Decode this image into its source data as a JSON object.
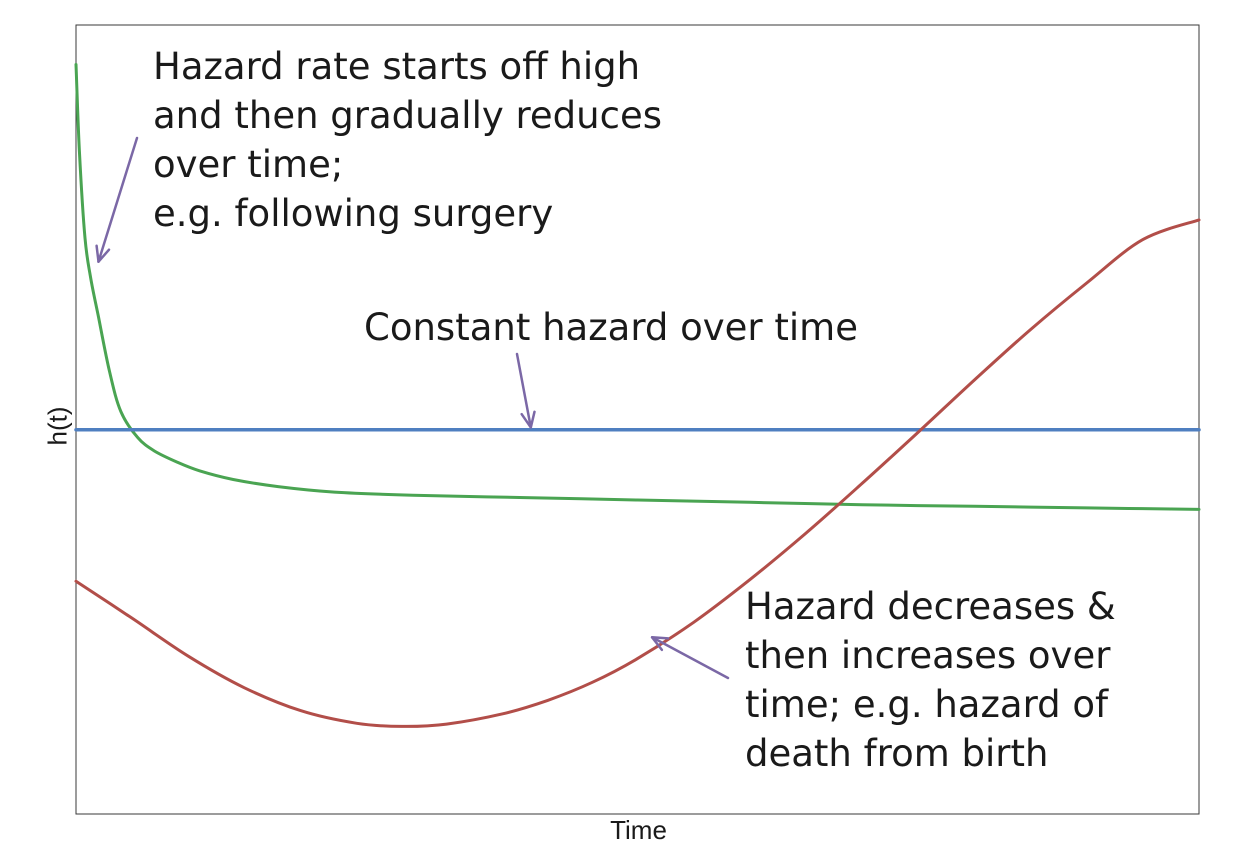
{
  "chart_data": {
    "type": "line",
    "title": "",
    "xlabel": "Time",
    "ylabel": "h(t)",
    "xlim": [
      0,
      1
    ],
    "ylim": [
      0,
      1
    ],
    "grid": false,
    "series": [
      {
        "key": "decreasing",
        "color": "#4aa452",
        "points": [
          [
            0.0,
            0.95
          ],
          [
            0.003,
            0.84
          ],
          [
            0.008,
            0.73
          ],
          [
            0.013,
            0.68
          ],
          [
            0.02,
            0.63
          ],
          [
            0.03,
            0.56
          ],
          [
            0.04,
            0.51
          ],
          [
            0.055,
            0.477
          ],
          [
            0.07,
            0.46
          ],
          [
            0.09,
            0.446
          ],
          [
            0.11,
            0.435
          ],
          [
            0.14,
            0.424
          ],
          [
            0.18,
            0.415
          ],
          [
            0.23,
            0.408
          ],
          [
            0.3,
            0.404
          ],
          [
            0.4,
            0.401
          ],
          [
            0.5,
            0.398
          ],
          [
            0.6,
            0.395
          ],
          [
            0.7,
            0.392
          ],
          [
            0.8,
            0.39
          ],
          [
            0.9,
            0.388
          ],
          [
            1.0,
            0.386
          ]
        ]
      },
      {
        "key": "constant",
        "color": "#4f7fc0",
        "points": [
          [
            0,
            0.487
          ],
          [
            1,
            0.487
          ]
        ]
      },
      {
        "key": "bathtub",
        "color": "#b24e49",
        "points": [
          [
            0.0,
            0.295
          ],
          [
            0.05,
            0.248
          ],
          [
            0.1,
            0.2
          ],
          [
            0.15,
            0.16
          ],
          [
            0.2,
            0.131
          ],
          [
            0.25,
            0.115
          ],
          [
            0.29,
            0.111
          ],
          [
            0.33,
            0.114
          ],
          [
            0.38,
            0.127
          ],
          [
            0.42,
            0.144
          ],
          [
            0.46,
            0.167
          ],
          [
            0.5,
            0.197
          ],
          [
            0.55,
            0.243
          ],
          [
            0.6,
            0.297
          ],
          [
            0.65,
            0.356
          ],
          [
            0.7,
            0.419
          ],
          [
            0.75,
            0.484
          ],
          [
            0.8,
            0.55
          ],
          [
            0.85,
            0.614
          ],
          [
            0.9,
            0.673
          ],
          [
            0.95,
            0.728
          ],
          [
            1.0,
            0.753
          ]
        ]
      }
    ],
    "annotations": [
      {
        "key": "decreasing",
        "lines": [
          "Hazard rate starts off high",
          "and then gradually reduces",
          "over time;",
          "e.g. following surgery"
        ],
        "arrow_to": [
          0.02,
          0.7
        ]
      },
      {
        "key": "constant",
        "lines": [
          "Constant hazard over time"
        ],
        "arrow_to": [
          0.405,
          0.49
        ]
      },
      {
        "key": "bathtub",
        "lines": [
          "Hazard decreases &",
          "then increases over",
          "time;  e.g. hazard of",
          "death from birth"
        ],
        "arrow_to": [
          0.513,
          0.224
        ]
      }
    ],
    "arrow_color": "#7b68a6"
  }
}
